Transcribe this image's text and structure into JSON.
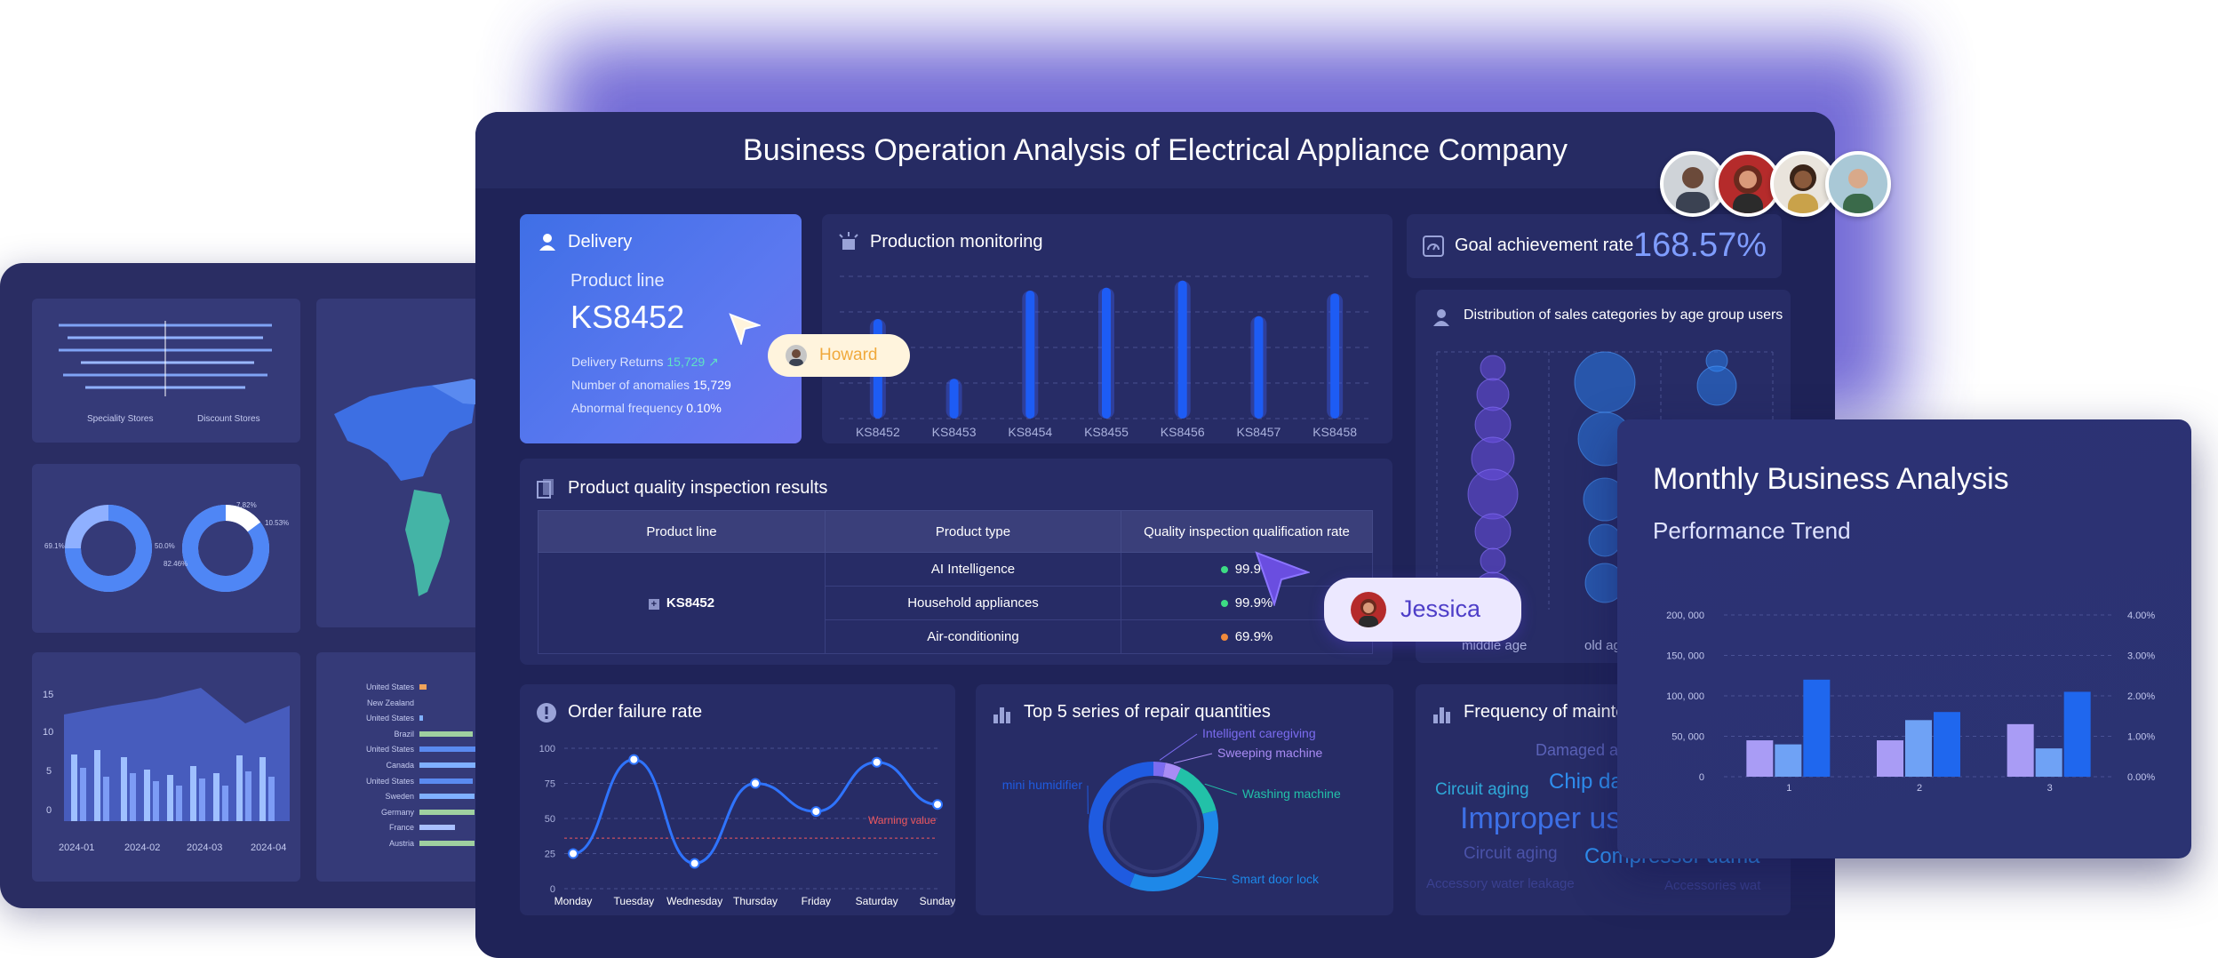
{
  "main": {
    "title": "Business Operation Analysis of Electrical Appliance Company",
    "delivery": {
      "title": "Delivery",
      "product_line_label": "Product line",
      "product_line_value": "KS8452",
      "returns_label": "Delivery Returns",
      "returns_value": "15,729",
      "anomalies_label": "Number of anomalies",
      "anomalies_value": "15,729",
      "abnormal_label": "Abnormal frequency",
      "abnormal_value": "0.10%"
    },
    "production": {
      "title": "Production monitoring",
      "chart_data": {
        "type": "bar",
        "categories": [
          "KS8452",
          "KS8453",
          "KS8454",
          "KS8455",
          "KS8456",
          "KS8457",
          "KS8458"
        ],
        "values": [
          70,
          28,
          90,
          92,
          97,
          72,
          88
        ],
        "ylim": [
          0,
          100
        ],
        "grid": true
      }
    },
    "goal": {
      "label": "Goal achievement rate",
      "value": "168.57%"
    },
    "distribution": {
      "title": "Distribution of sales categories by age group users",
      "categories": [
        "middle age",
        "old age"
      ]
    },
    "quality": {
      "title": "Product quality inspection results",
      "headers": [
        "Product line",
        "Product type",
        "Quality inspection qualification rate"
      ],
      "product_line": "KS8452",
      "rows": [
        {
          "type": "AI Intelligence",
          "rate": "99.9%",
          "color": "#3ddc84"
        },
        {
          "type": "Household appliances",
          "rate": "99.9%",
          "color": "#3ddc84"
        },
        {
          "type": "Air-conditioning",
          "rate": "69.9%",
          "color": "#f08a3c"
        }
      ]
    },
    "order_failure": {
      "title": "Order failure rate",
      "warning_label": "Warning value",
      "chart_data": {
        "type": "line",
        "x": [
          "Monday",
          "Tuesday",
          "Wednesday",
          "Thursday",
          "Friday",
          "Saturday",
          "Sunday"
        ],
        "series": [
          {
            "values": [
              25,
              92,
              18,
              75,
              55,
              90,
              60
            ]
          }
        ],
        "yticks": [
          "0",
          "25",
          "50",
          "75",
          "100"
        ],
        "ylim": [
          0,
          100
        ],
        "warning": 36
      }
    },
    "repair": {
      "title": "Top 5 series of repair quantities",
      "chart_data": {
        "type": "pie",
        "labels": [
          "Intelligent caregiving",
          "Sweeping machine",
          "Washing machine",
          "Smart door lock",
          "mini humidifier"
        ],
        "values": [
          3,
          4,
          14,
          35,
          44
        ],
        "colors": [
          "#7b6cf0",
          "#a98cf5",
          "#22c1a8",
          "#1e88e8",
          "#1f5be0"
        ]
      }
    },
    "maintenance": {
      "title": "Frequency of mainte",
      "words": [
        "Damaged ac",
        "Circuit aging",
        "Chip da",
        "Improper us",
        "Circuit aging",
        "Compressor dama",
        "Accessory water leakage",
        "Accessories wat"
      ]
    }
  },
  "pointers": {
    "howard": "Howard",
    "jessica": "Jessica"
  },
  "monthly": {
    "title": "Monthly Business Analysis",
    "subtitle": "Performance Trend",
    "chart_data": {
      "type": "bar",
      "categories": [
        "1",
        "2",
        "3"
      ],
      "series": [
        {
          "values": [
            45000,
            45000,
            65000
          ],
          "color": "#a99cf5"
        },
        {
          "values": [
            40000,
            70000,
            35000
          ],
          "color": "#6fa2f5"
        },
        {
          "values": [
            120000,
            80000,
            105000
          ],
          "color": "#1f67ee"
        }
      ],
      "yticks": [
        "0",
        "50, 000",
        "100, 000",
        "150, 000",
        "200, 000"
      ],
      "y2ticks": [
        "0.00%",
        "1.00%",
        "2.00%",
        "3.00%",
        "4.00%"
      ],
      "ylim": [
        0,
        200000
      ]
    }
  },
  "back": {
    "store_labels": [
      "Speciality Stores",
      "Discount Stores"
    ],
    "donut_labels": [
      "69.1%",
      "50.0%",
      "7.82%",
      "10.53%",
      "82.46%"
    ],
    "area_y": [
      "15",
      "10",
      "5",
      "0"
    ],
    "area_x": [
      "2024-01",
      "2024-02",
      "2024-03",
      "2024-04"
    ],
    "countries": [
      "United States",
      "New Zealand",
      "United States",
      "Brazil",
      "United States",
      "Canada",
      "United States",
      "Sweden",
      "Germany",
      "France",
      "Austria"
    ]
  }
}
